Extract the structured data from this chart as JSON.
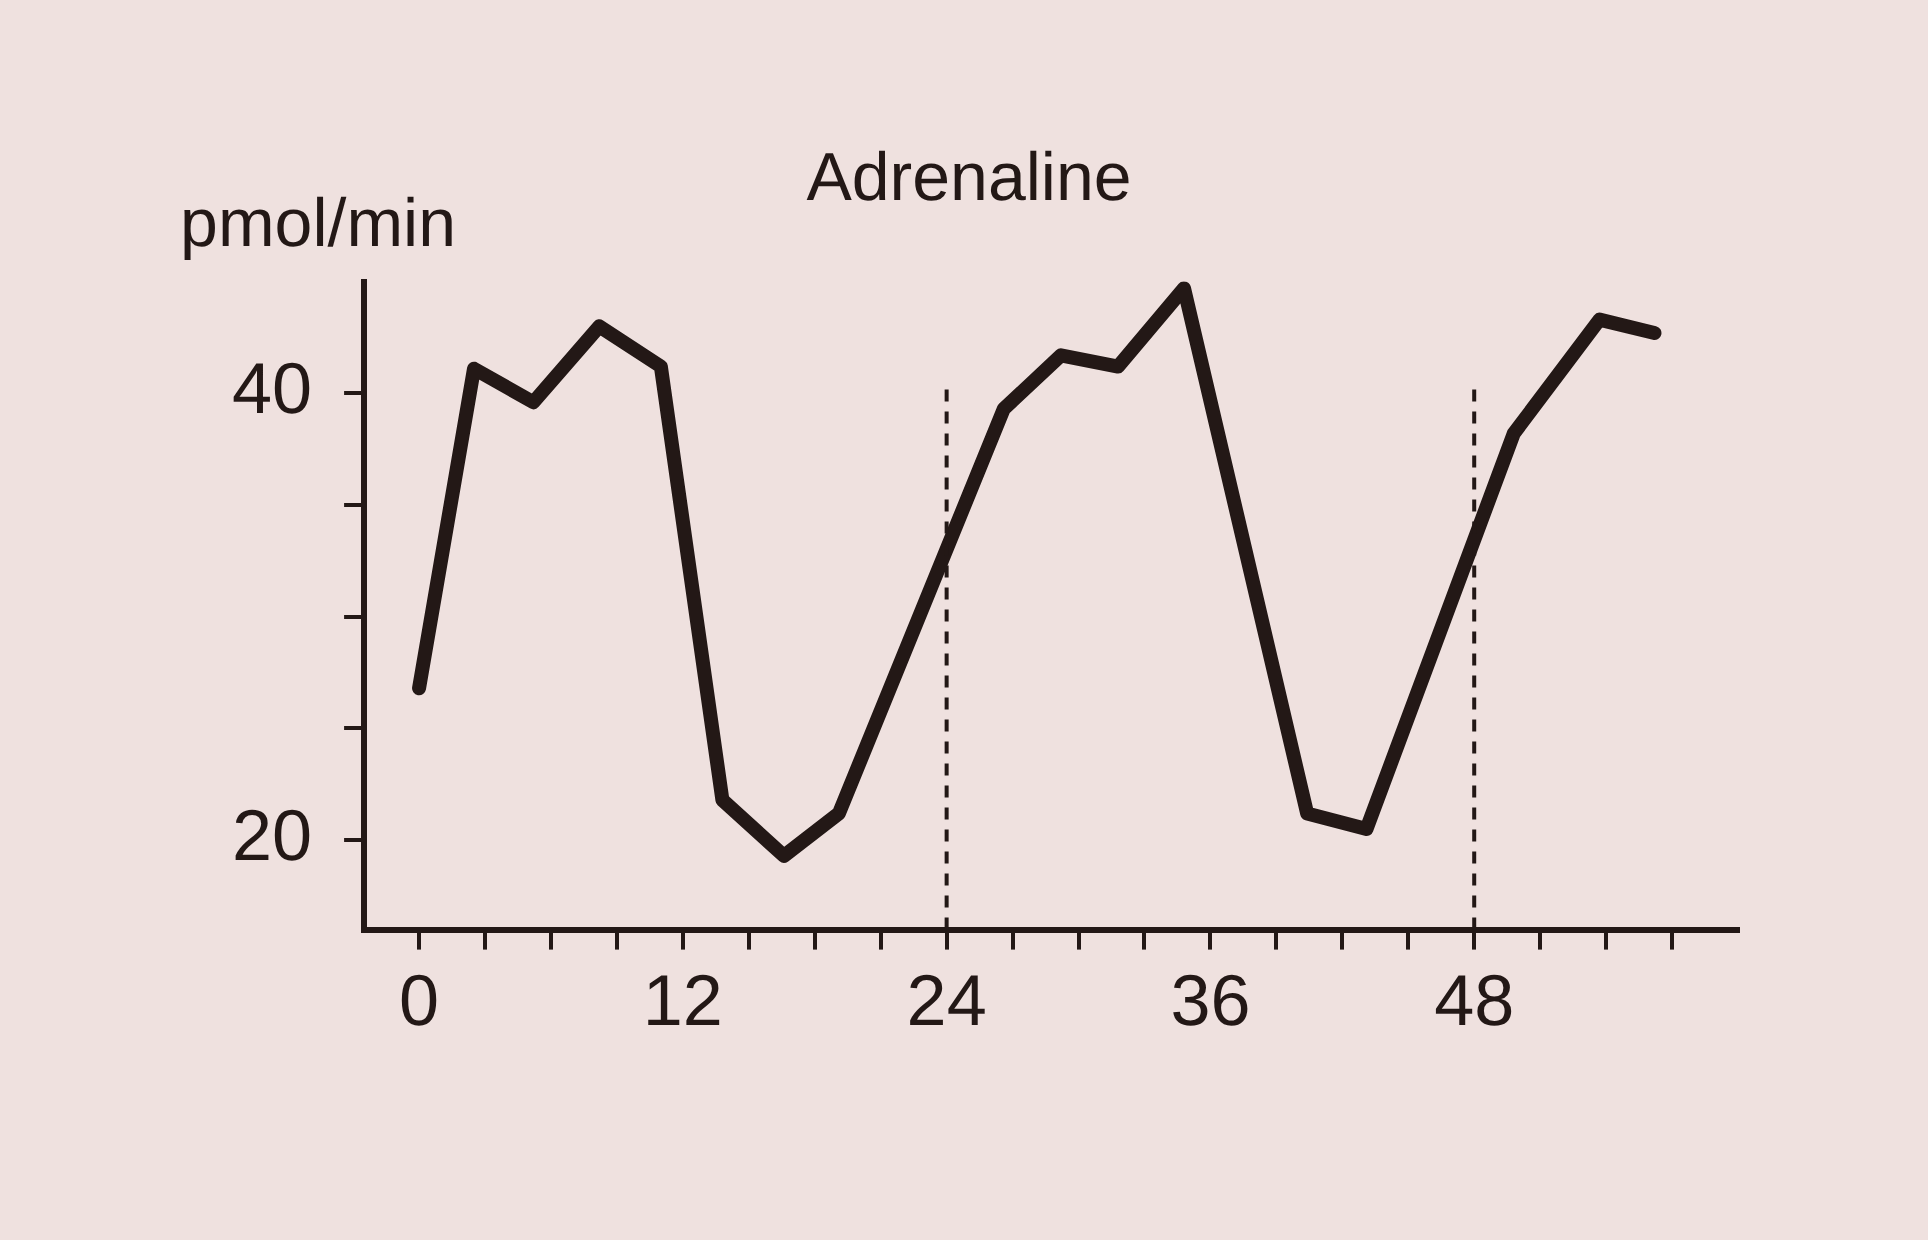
{
  "chart_data": {
    "type": "line",
    "title": "Adrenaline",
    "ylabel": "pmol/min",
    "x": [
      0,
      2.5,
      5.2,
      8.2,
      11,
      13.8,
      16.6,
      19.1,
      26.6,
      29.2,
      31.8,
      34.8,
      40.4,
      43.1,
      49.8,
      53.7,
      56.2
    ],
    "series": [
      {
        "color": "#231816",
        "values": [
          26.8,
          41.1,
          39.6,
          43.0,
          41.2,
          21.8,
          19.3,
          21.2,
          39.3,
          41.7,
          41.2,
          44.7,
          21.2,
          20.5,
          38.2,
          43.3,
          42.7
        ]
      }
    ],
    "xlim": [
      -2.5,
      60
    ],
    "ylim": [
      16,
      45
    ],
    "xticks": [
      0,
      {
        "value": 3,
        "label": null
      },
      {
        "value": 6,
        "label": null
      },
      {
        "value": 9,
        "label": null
      },
      12,
      {
        "value": 15,
        "label": null
      },
      {
        "value": 18,
        "label": null
      },
      {
        "value": 21,
        "label": null
      },
      24,
      {
        "value": 27,
        "label": null
      },
      {
        "value": 30,
        "label": null
      },
      {
        "value": 33,
        "label": null
      },
      36,
      {
        "value": 39,
        "label": null
      },
      {
        "value": 42,
        "label": null
      },
      {
        "value": 45,
        "label": null
      },
      48,
      {
        "value": 51,
        "label": null
      },
      {
        "value": 54,
        "label": null
      },
      {
        "value": 57,
        "label": null
      }
    ],
    "yticks": [
      20,
      {
        "value": 25,
        "label": null
      },
      {
        "value": 30,
        "label": null
      },
      {
        "value": 35,
        "label": null
      },
      40
    ],
    "ref_lines": [
      {
        "axis": "x",
        "value": 24,
        "line_style": "dashed",
        "color": "#231816"
      },
      {
        "axis": "x",
        "value": 48,
        "line_style": "dashed",
        "color": "#231816"
      }
    ],
    "grid": false,
    "legend": false,
    "marker": "none",
    "line_style": "solid"
  }
}
